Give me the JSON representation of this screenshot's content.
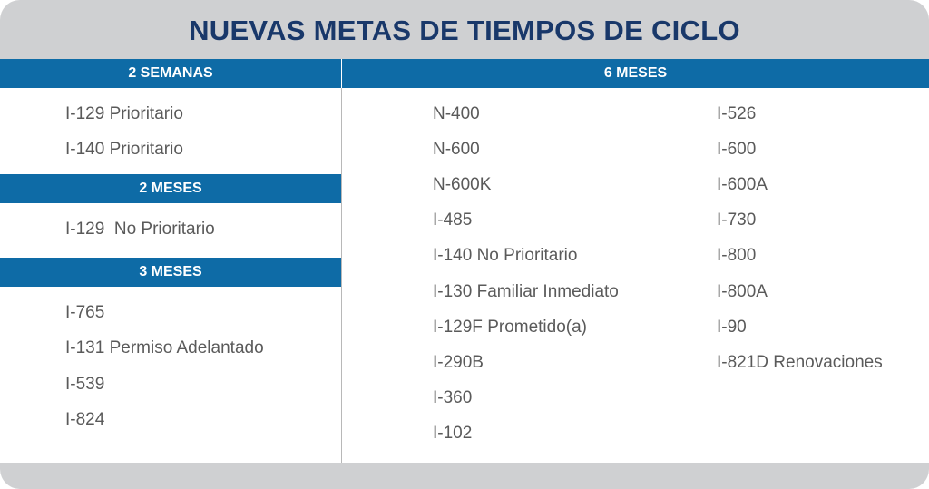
{
  "title": "NUEVAS METAS DE TIEMPOS DE CICLO",
  "sections": [
    {
      "heading": "2 SEMANAS",
      "items": [
        "I-129 Prioritario",
        "I-140 Prioritario"
      ]
    },
    {
      "heading": "2 MESES",
      "items": [
        "I-129  No Prioritario"
      ]
    },
    {
      "heading": "3 MESES",
      "items": [
        "I-765",
        "I-131 Permiso Adelantado",
        "I-539",
        "I-824"
      ]
    },
    {
      "heading": "6 MESES",
      "columns": [
        [
          "N-400",
          "N-600",
          "N-600K",
          "I-485",
          "I-140 No Prioritario",
          "I-130 Familiar Inmediato",
          "I-129F Prometido(a)",
          "I-290B",
          "I-360",
          "I-102"
        ],
        [
          "I-526",
          "I-600",
          "I-600A",
          "I-730",
          "I-800",
          "I-800A",
          "I-90",
          "I-821D Renovaciones"
        ]
      ]
    }
  ]
}
